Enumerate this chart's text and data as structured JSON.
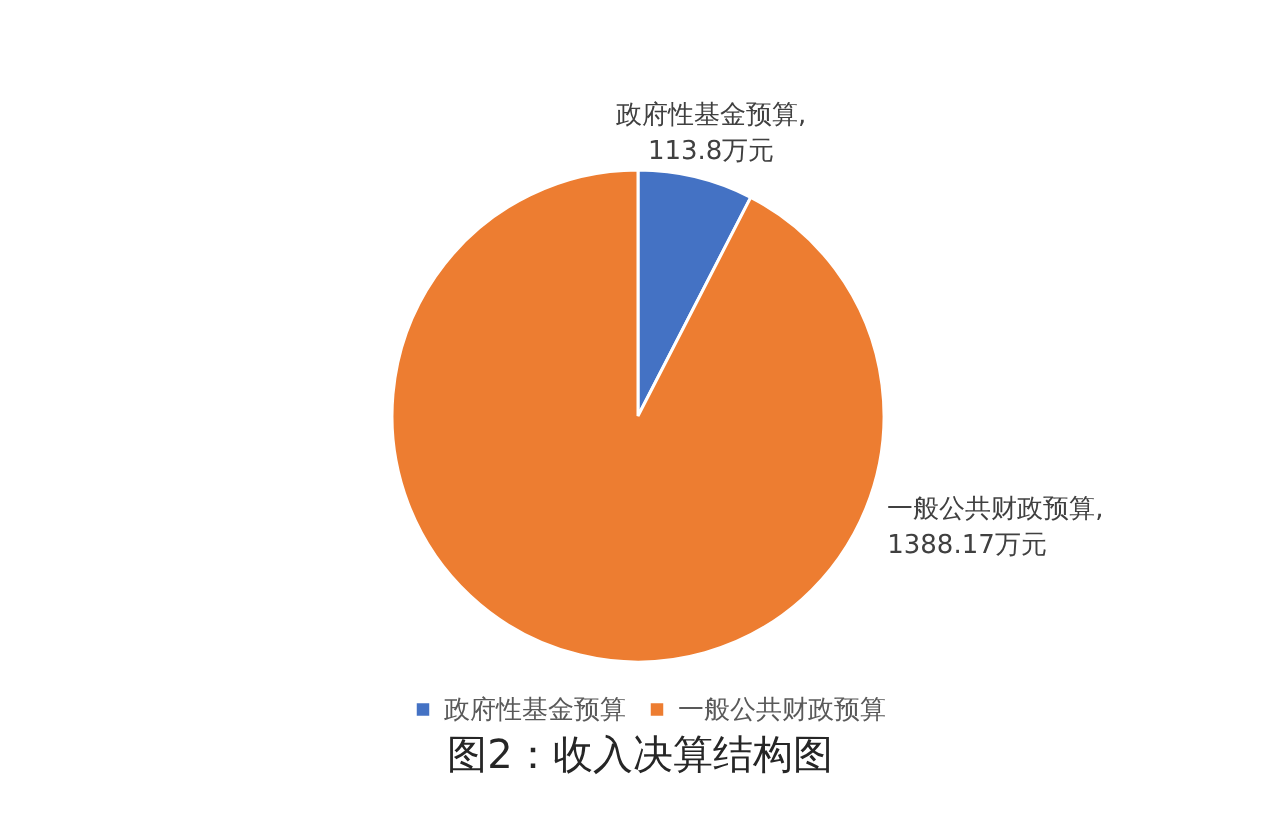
{
  "chart_data": {
    "type": "pie",
    "title": "图2：收入决算结构图",
    "categories": [
      "政府性基金预算",
      "一般公共财政预算"
    ],
    "values": [
      113.8,
      1388.17
    ],
    "colors": [
      "#4472c4",
      "#ed7d31"
    ],
    "value_labels": [
      "政府性基金预算, 113.8万元",
      "一般公共财政预算, 1388.17万元"
    ],
    "legend": "bottom"
  }
}
